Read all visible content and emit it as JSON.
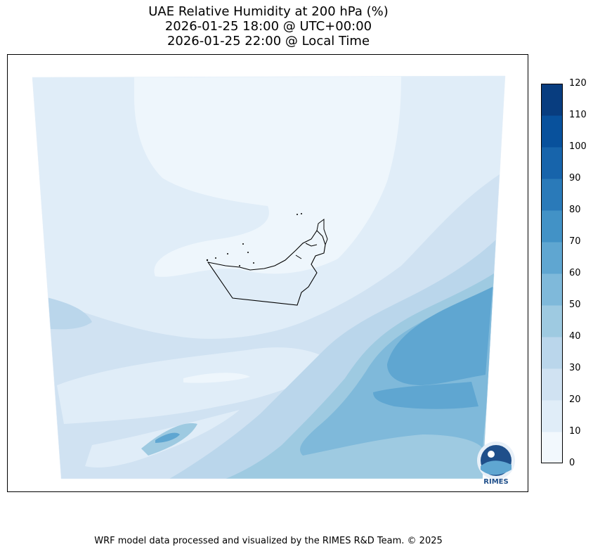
{
  "title": {
    "line1": "UAE Relative Humidity at 200 hPa (%)",
    "line2": "2026-01-25 18:00 @ UTC+00:00",
    "line3": "2026-01-25 22:00 @ Local Time"
  },
  "colorbar": {
    "ticks": [
      "0",
      "10",
      "20",
      "30",
      "40",
      "50",
      "60",
      "70",
      "80",
      "90",
      "100",
      "110",
      "120"
    ],
    "level_colors": [
      "#f2f8fd",
      "#e0edf8",
      "#d0e2f2",
      "#bad6eb",
      "#9ecae1",
      "#7fb9da",
      "#5fa6d1",
      "#4292c6",
      "#2a7ab9",
      "#1764ab",
      "#08519c",
      "#083d7f"
    ]
  },
  "logo": {
    "name": "RIMES"
  },
  "footer": "WRF model data processed and visualized by the RIMES R&D Team. © 2025"
}
